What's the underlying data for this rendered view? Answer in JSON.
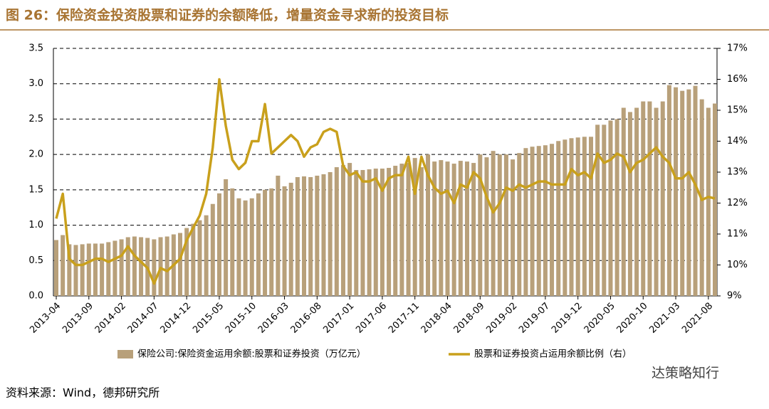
{
  "chart_data": {
    "type": "bar-line",
    "title": "图 26：保险资金投资股票和证券的余额降低，增量资金寻求新的投资目标",
    "source": "资料来源：Wind，德邦研究所",
    "watermark": "达策略知行",
    "categories": [
      "2013-04",
      null,
      null,
      null,
      null,
      "2013-09",
      null,
      null,
      null,
      null,
      "2014-02",
      null,
      null,
      null,
      null,
      "2014-07",
      null,
      null,
      null,
      null,
      "2014-12",
      null,
      null,
      null,
      null,
      "2015-05",
      null,
      null,
      null,
      null,
      "2015-10",
      null,
      null,
      null,
      null,
      "2016-03",
      null,
      null,
      null,
      null,
      "2016-08",
      null,
      null,
      null,
      null,
      "2017-01",
      null,
      null,
      null,
      null,
      "2017-06",
      null,
      null,
      null,
      null,
      "2017-11",
      null,
      null,
      null,
      null,
      "2018-04",
      null,
      null,
      null,
      null,
      "2018-09",
      null,
      null,
      null,
      null,
      "2019-02",
      null,
      null,
      null,
      null,
      "2019-07",
      null,
      null,
      null,
      null,
      "2019-12",
      null,
      null,
      null,
      null,
      "2020-05",
      null,
      null,
      null,
      null,
      "2020-10",
      null,
      null,
      null,
      null,
      "2021-03",
      null,
      null,
      null,
      null,
      "2021-08",
      null
    ],
    "series": [
      {
        "name": "保险公司:保险资金运用余额:股票和证券投资（万亿元）",
        "color": "#b8a07a",
        "axis": "y",
        "values": [
          0.79,
          0.86,
          0.73,
          0.72,
          0.73,
          0.74,
          0.74,
          0.74,
          0.76,
          0.78,
          0.8,
          0.83,
          0.84,
          0.83,
          0.82,
          0.8,
          0.83,
          0.84,
          0.87,
          0.89,
          0.96,
          1.02,
          1.07,
          1.14,
          1.3,
          1.45,
          1.65,
          1.52,
          1.38,
          1.35,
          1.38,
          1.45,
          1.5,
          1.52,
          1.7,
          1.55,
          1.6,
          1.68,
          1.69,
          1.68,
          1.7,
          1.72,
          1.75,
          1.82,
          1.85,
          1.88,
          1.78,
          1.78,
          1.79,
          1.8,
          1.8,
          1.81,
          1.84,
          1.87,
          1.88,
          1.95,
          1.82,
          2.0,
          1.9,
          1.92,
          1.9,
          1.87,
          1.91,
          1.9,
          1.88,
          2.0,
          1.96,
          2.05,
          2.0,
          2.0,
          1.93,
          2.02,
          2.09,
          2.11,
          2.12,
          2.13,
          2.15,
          2.19,
          2.21,
          2.23,
          2.24,
          2.25,
          2.25,
          2.42,
          2.42,
          2.48,
          2.5,
          2.66,
          2.6,
          2.66,
          2.75,
          2.75,
          2.66,
          2.75,
          2.98,
          2.95,
          2.9,
          2.92,
          2.97,
          2.78,
          2.66,
          2.72
        ]
      },
      {
        "name": "股票和证券投资占运用余额比例（右）",
        "color": "#c9a01c",
        "axis": "y2",
        "values": [
          11.5,
          12.3,
          10.2,
          10.0,
          10.0,
          10.1,
          10.2,
          10.2,
          10.1,
          10.2,
          10.3,
          10.6,
          10.3,
          10.1,
          9.9,
          9.4,
          9.9,
          9.8,
          10.0,
          10.2,
          10.8,
          11.2,
          11.6,
          12.3,
          13.8,
          16.0,
          14.5,
          13.4,
          13.1,
          13.3,
          14.0,
          14.0,
          15.2,
          13.6,
          13.8,
          14.0,
          14.2,
          14.0,
          13.5,
          13.8,
          13.9,
          14.3,
          14.4,
          14.3,
          13.2,
          12.9,
          13.0,
          12.7,
          12.7,
          12.8,
          12.4,
          12.8,
          12.9,
          12.9,
          13.5,
          12.3,
          13.5,
          12.9,
          12.5,
          12.3,
          12.4,
          12.0,
          12.6,
          12.5,
          13.0,
          12.8,
          12.2,
          11.7,
          12.0,
          12.5,
          12.4,
          12.6,
          12.5,
          12.6,
          12.7,
          12.7,
          12.6,
          12.6,
          12.6,
          13.1,
          12.9,
          13.0,
          12.8,
          13.6,
          13.3,
          13.4,
          13.6,
          13.5,
          13.0,
          13.3,
          13.4,
          13.6,
          13.8,
          13.5,
          13.3,
          12.8,
          12.8,
          13.0,
          12.6,
          12.1,
          12.2,
          12.15
        ]
      }
    ],
    "ylim": [
      0,
      3.5
    ],
    "yticks": [
      {
        "value": 0,
        "label": "0.0"
      },
      {
        "value": 0.5,
        "label": "0.5"
      },
      {
        "value": 1,
        "label": "1.0"
      },
      {
        "value": 1.5,
        "label": "1.5"
      },
      {
        "value": 2,
        "label": "2.0"
      },
      {
        "value": 2.5,
        "label": "2.5"
      },
      {
        "value": 3,
        "label": "3.0"
      },
      {
        "value": 3.5,
        "label": "3.5"
      }
    ],
    "y2lim": [
      9,
      17
    ],
    "y2ticks": [
      {
        "value": 9,
        "label": "9%"
      },
      {
        "value": 10,
        "label": "10%"
      },
      {
        "value": 11,
        "label": "11%"
      },
      {
        "value": 12,
        "label": "12%"
      },
      {
        "value": 13,
        "label": "13%"
      },
      {
        "value": 14,
        "label": "14%"
      },
      {
        "value": 15,
        "label": "15%"
      },
      {
        "value": 16,
        "label": "16%"
      },
      {
        "value": 17,
        "label": "17%"
      }
    ],
    "grid": true
  }
}
